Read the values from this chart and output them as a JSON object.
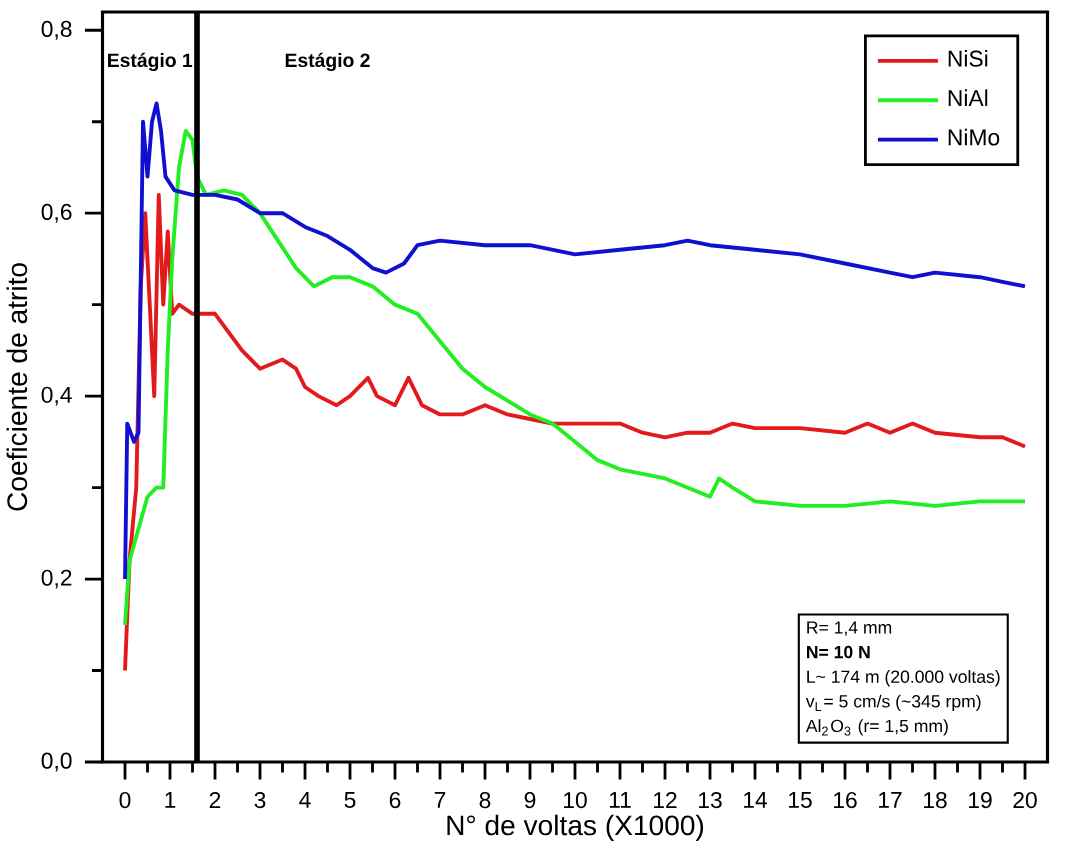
{
  "chart_data": {
    "type": "line",
    "xlabel": "N° de voltas (X1000)",
    "ylabel": "Coeficiente de atrito",
    "xlim": [
      -0.5,
      20.5
    ],
    "ylim": [
      0,
      0.82
    ],
    "xticks": [
      0,
      1,
      2,
      3,
      4,
      5,
      6,
      7,
      8,
      9,
      10,
      11,
      12,
      13,
      14,
      15,
      16,
      17,
      18,
      19,
      20
    ],
    "yticks": [
      {
        "value": 0,
        "label": "0,0"
      },
      {
        "value": 0.2,
        "label": "0,2"
      },
      {
        "value": 0.4,
        "label": "0,4"
      },
      {
        "value": 0.6,
        "label": "0,6"
      },
      {
        "value": 0.8,
        "label": "0,8"
      }
    ],
    "legend": "top right",
    "marker": "none",
    "line_style": "solid",
    "grid": false,
    "ref_lines": [
      {
        "axis": "x",
        "value": 1.6,
        "color": "#000000"
      }
    ],
    "annotations": [
      "Estágio 1",
      "Estágio 2",
      "R= 1,4 mm",
      "**N= 10 N**",
      "L~ 174 m (20.000 voltas)",
      "v$_{L}$= 5 cm/s (~345 rpm)",
      "Al$_{2}$O$_{3}$ (r= 1,5 mm)"
    ],
    "series": [
      {
        "name": "NiSi",
        "color": "#e31a1c",
        "x": [
          0,
          0.1,
          0.25,
          0.35,
          0.45,
          0.55,
          0.65,
          0.75,
          0.85,
          0.95,
          1.05,
          1.2,
          1.5,
          1.8,
          2,
          2.3,
          2.6,
          3,
          3.5,
          3.8,
          4,
          4.3,
          4.7,
          5,
          5.4,
          5.6,
          6,
          6.3,
          6.6,
          7,
          7.5,
          8,
          8.5,
          9,
          9.5,
          10,
          10.5,
          11,
          11.5,
          12,
          12.5,
          13,
          13.5,
          14,
          15,
          16,
          16.5,
          17,
          17.5,
          18,
          19,
          19.5,
          20
        ],
        "values": [
          0.1,
          0.22,
          0.3,
          0.52,
          0.6,
          0.5,
          0.4,
          0.62,
          0.5,
          0.58,
          0.49,
          0.5,
          0.49,
          0.49,
          0.49,
          0.47,
          0.45,
          0.43,
          0.44,
          0.43,
          0.41,
          0.4,
          0.39,
          0.4,
          0.42,
          0.4,
          0.39,
          0.42,
          0.39,
          0.38,
          0.38,
          0.39,
          0.38,
          0.375,
          0.37,
          0.37,
          0.37,
          0.37,
          0.36,
          0.355,
          0.36,
          0.36,
          0.37,
          0.365,
          0.365,
          0.36,
          0.37,
          0.36,
          0.37,
          0.36,
          0.355,
          0.355,
          0.345
        ]
      },
      {
        "name": "NiAl",
        "color": "#22ee22",
        "x": [
          0,
          0.1,
          0.5,
          0.7,
          0.85,
          0.95,
          1.05,
          1.2,
          1.35,
          1.5,
          1.6,
          1.8,
          2.2,
          2.6,
          3,
          3.4,
          3.8,
          4.2,
          4.6,
          5,
          5.5,
          6,
          6.5,
          7,
          7.5,
          8,
          8.5,
          9,
          9.5,
          10,
          10.5,
          11,
          11.5,
          12,
          12.5,
          13,
          13.2,
          13.5,
          14,
          15,
          16,
          17,
          18,
          19,
          20
        ],
        "values": [
          0.15,
          0.22,
          0.29,
          0.3,
          0.3,
          0.45,
          0.55,
          0.65,
          0.69,
          0.68,
          0.64,
          0.62,
          0.625,
          0.62,
          0.6,
          0.57,
          0.54,
          0.52,
          0.53,
          0.53,
          0.52,
          0.5,
          0.49,
          0.46,
          0.43,
          0.41,
          0.395,
          0.38,
          0.37,
          0.35,
          0.33,
          0.32,
          0.315,
          0.31,
          0.3,
          0.29,
          0.31,
          0.3,
          0.285,
          0.28,
          0.28,
          0.285,
          0.28,
          0.285,
          0.285
        ]
      },
      {
        "name": "NiMo",
        "color": "#1010d0",
        "x": [
          0,
          0.05,
          0.2,
          0.3,
          0.4,
          0.5,
          0.6,
          0.7,
          0.8,
          0.9,
          1.1,
          1.5,
          2,
          2.5,
          3,
          3.5,
          4,
          4.5,
          5,
          5.5,
          5.8,
          6.2,
          6.5,
          7,
          8,
          9,
          10,
          11,
          12,
          12.5,
          13,
          14,
          15,
          16,
          17,
          17.5,
          18,
          19,
          19.5,
          20
        ],
        "values": [
          0.2,
          0.37,
          0.35,
          0.36,
          0.7,
          0.64,
          0.7,
          0.72,
          0.69,
          0.64,
          0.625,
          0.62,
          0.62,
          0.615,
          0.6,
          0.6,
          0.585,
          0.575,
          0.56,
          0.54,
          0.535,
          0.545,
          0.565,
          0.57,
          0.565,
          0.565,
          0.555,
          0.56,
          0.565,
          0.57,
          0.565,
          0.56,
          0.555,
          0.545,
          0.535,
          0.53,
          0.535,
          0.53,
          0.525,
          0.52
        ]
      }
    ]
  }
}
